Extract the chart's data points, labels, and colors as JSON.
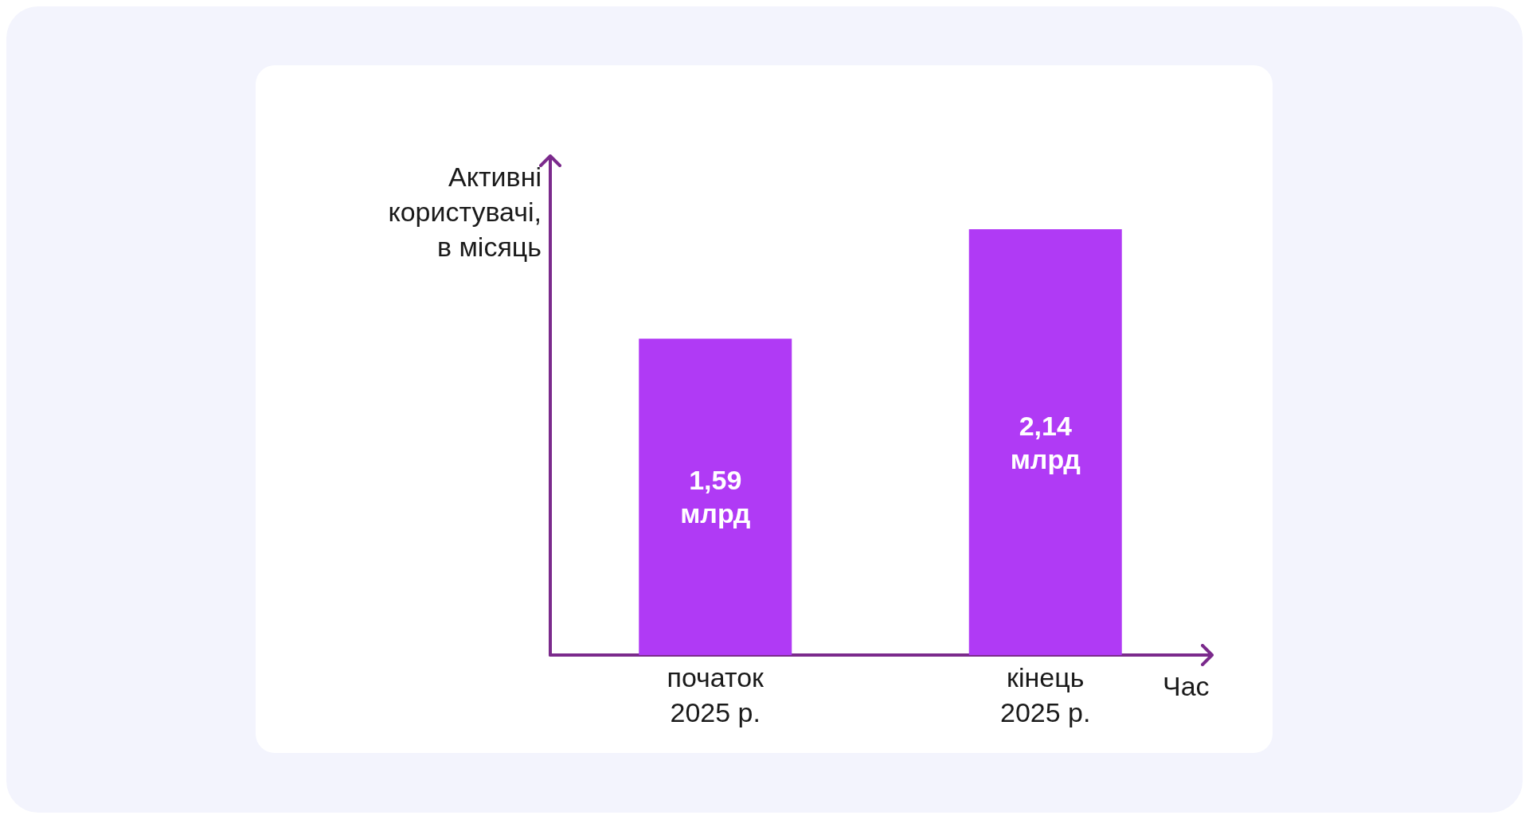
{
  "chart_data": {
    "type": "bar",
    "xlabel": "Час",
    "ylabel": "Активні користувачі, в місяць",
    "categories": [
      "початок 2025 р.",
      "кінець 2025 р."
    ],
    "values": [
      1.59,
      2.14
    ],
    "value_labels": [
      "1,59 млрд",
      "2,14 млрд"
    ],
    "color": "#b03af5",
    "grid": false,
    "tick_labels": "x"
  }
}
